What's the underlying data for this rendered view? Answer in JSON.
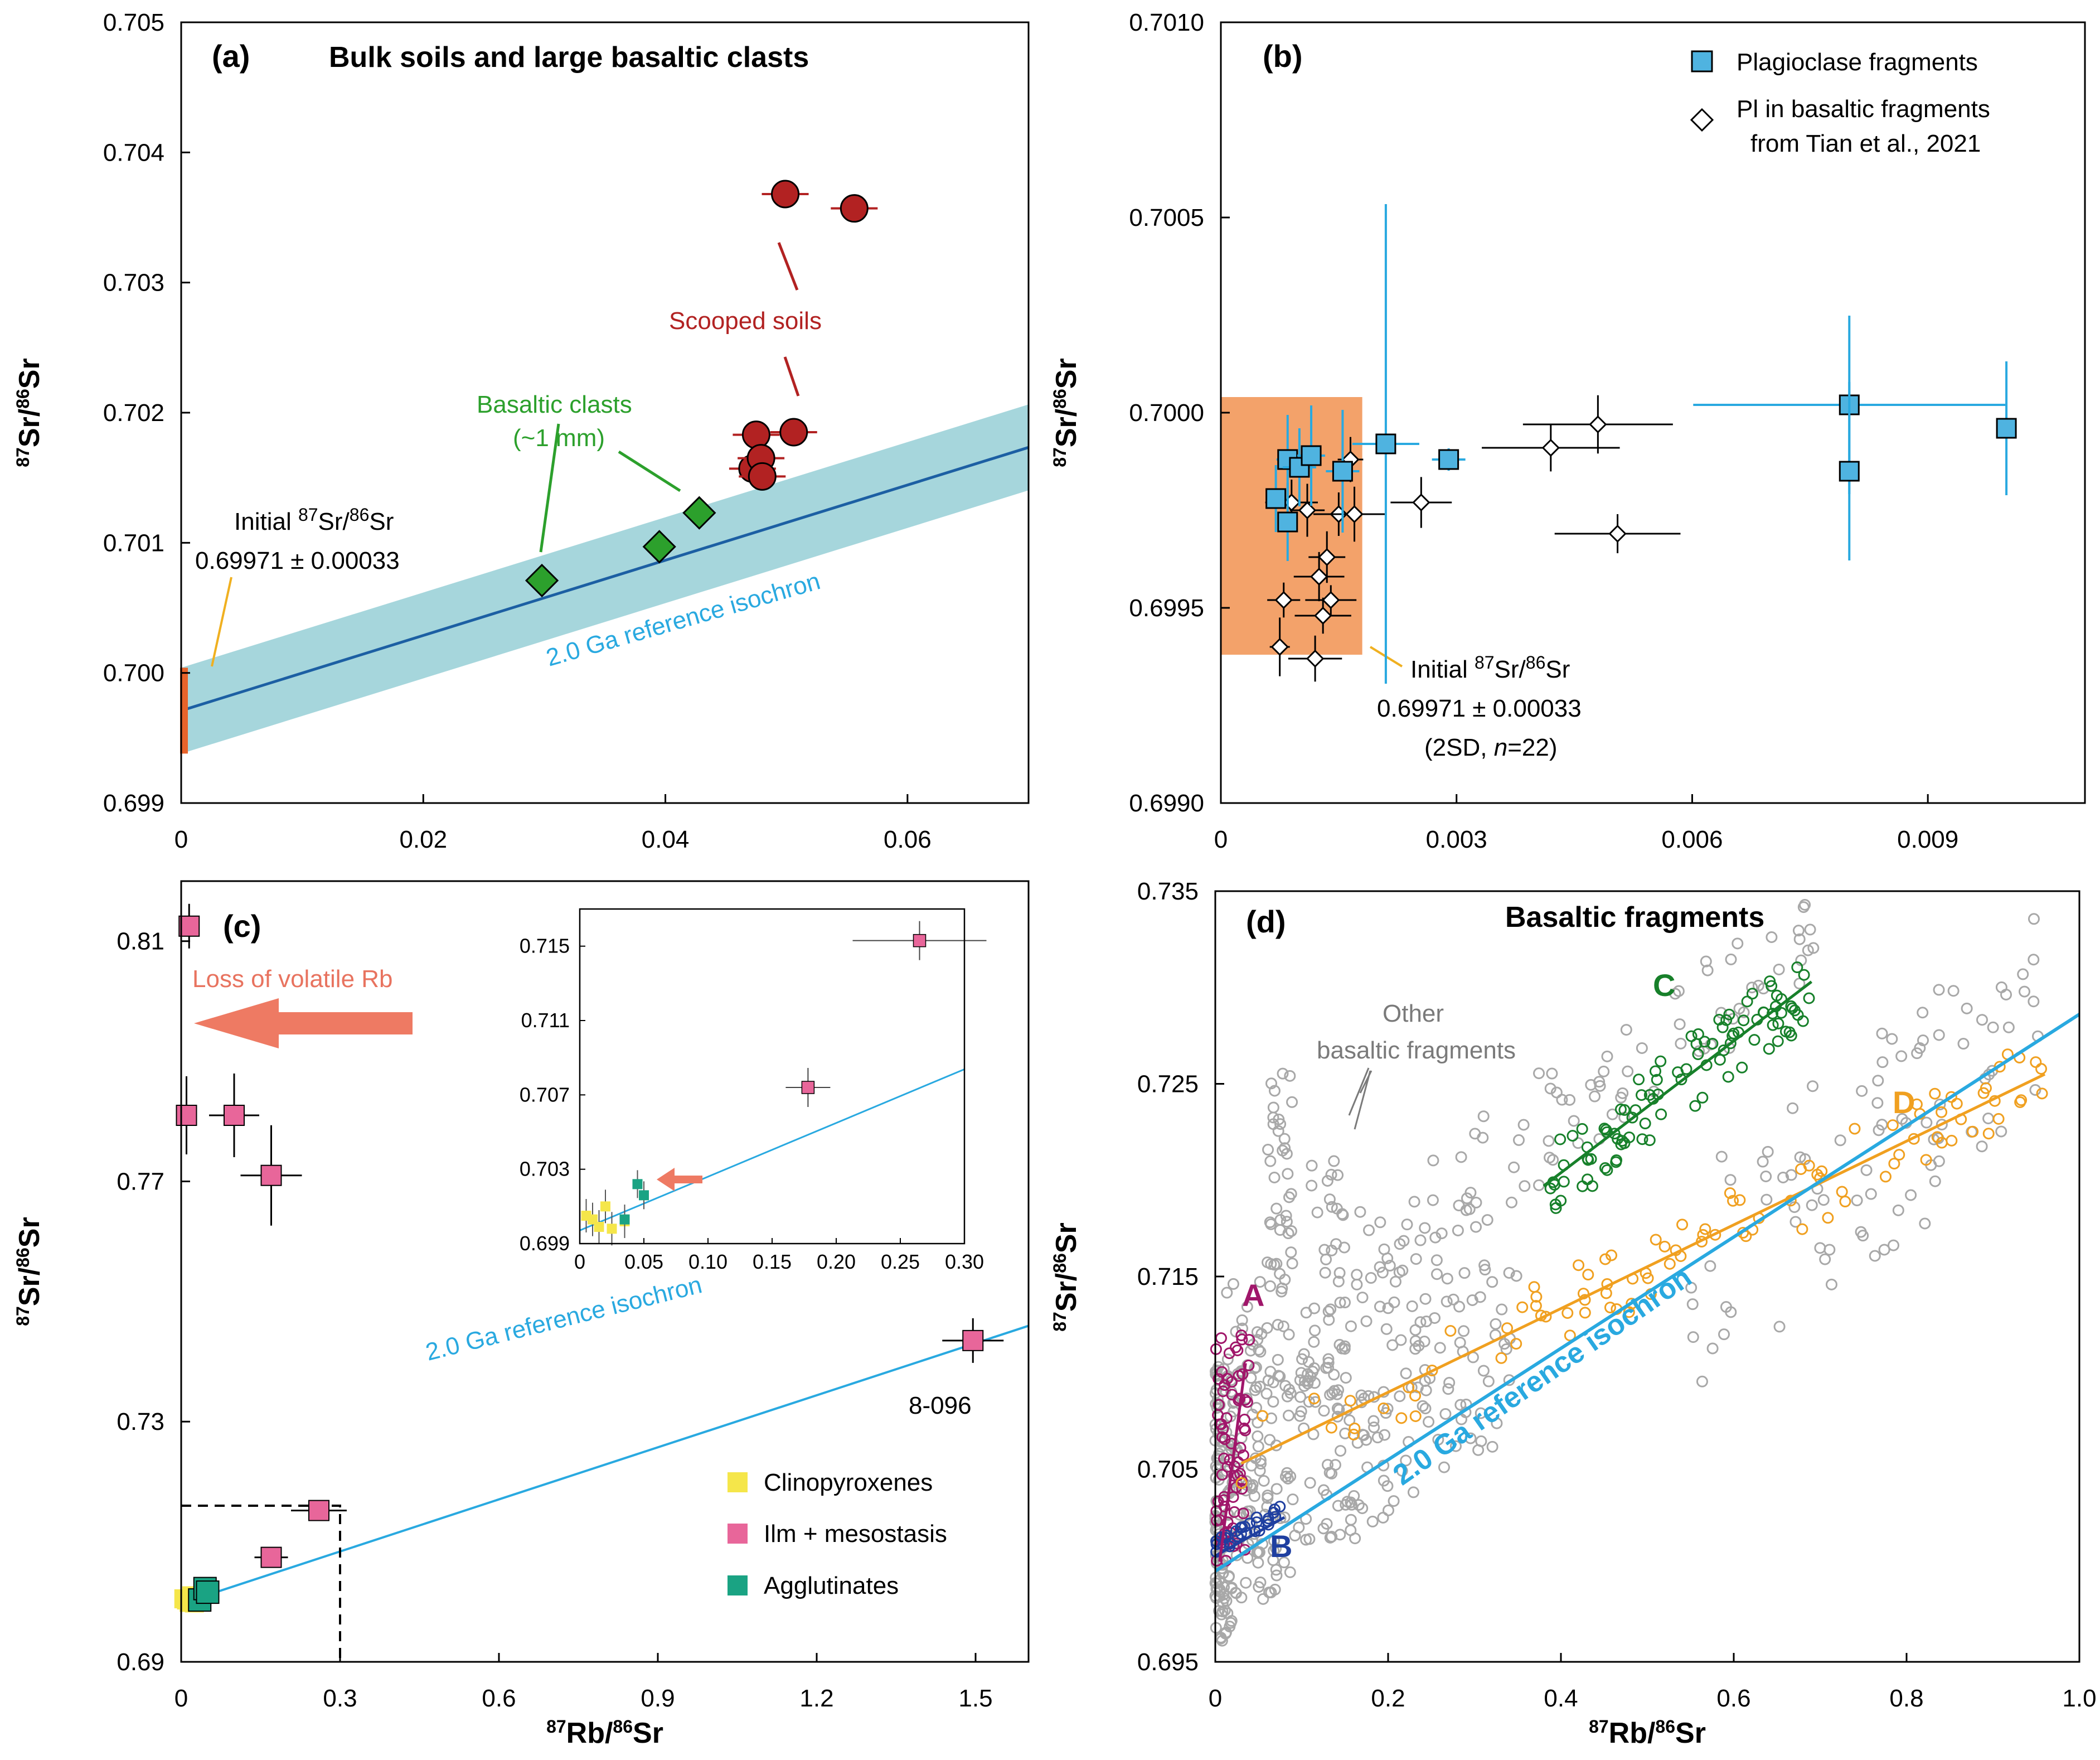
{
  "chart_data": [
    {
      "panel": "(a)",
      "type": "scatter",
      "title": "Bulk soils and large basaltic clasts",
      "xlim": [
        0,
        0.07
      ],
      "ylim": [
        0.699,
        0.705
      ],
      "xticks": [
        "0",
        "0.02",
        "0.04",
        "0.06"
      ],
      "yticks": [
        "0.699",
        "0.700",
        "0.701",
        "0.702",
        "0.703",
        "0.704",
        "0.705"
      ],
      "ylabel_main": "Sr/",
      "ylabel_end": "Sr",
      "ylabel_sup1": "87",
      "ylabel_sup2": "86",
      "series": [
        {
          "name": "Scooped soils",
          "color": "#b22222",
          "points": [
            [
              0.0499,
              0.70368
            ],
            [
              0.0556,
              0.70357
            ],
            [
              0.0475,
              0.70183
            ],
            [
              0.0506,
              0.70185
            ],
            [
              0.0472,
              0.70157
            ],
            [
              0.0479,
              0.70165
            ],
            [
              0.048,
              0.70151
            ]
          ]
        },
        {
          "name": "Basaltic clasts (~1 mm)",
          "color": "#2ca02c",
          "points": [
            [
              0.0298,
              0.70071
            ],
            [
              0.0395,
              0.70097
            ],
            [
              0.0428,
              0.70123
            ]
          ]
        }
      ],
      "isochron": {
        "label": "2.0 Ga reference isochron",
        "intercept": 0.69971,
        "slope": 0.0289,
        "band": 0.00033
      },
      "annotations": {
        "scooped": "Scooped soils",
        "clasts_1": "Basaltic clasts",
        "clasts_2": "(~1 mm)",
        "initial_1_pre": "Initial ",
        "initial_1_sup1": "87",
        "initial_1_mid": "Sr/",
        "initial_1_sup2": "86",
        "initial_1_post": "Sr",
        "initial_2": "0.69971 ± 0.00033"
      }
    },
    {
      "panel": "(b)",
      "type": "scatter",
      "xlim": [
        0,
        0.011
      ],
      "ylim": [
        0.699,
        0.701
      ],
      "xticks": [
        "0",
        "0.003",
        "0.006",
        "0.009"
      ],
      "yticks": [
        "0.6990",
        "0.6995",
        "0.7000",
        "0.7005",
        "0.7010"
      ],
      "ylabel_main": "Sr/",
      "ylabel_end": "Sr",
      "ylabel_sup1": "87",
      "ylabel_sup2": "86",
      "legend": [
        "Plagioclase fragments",
        "Pl in basaltic fragments",
        "from Tian et al., 2021"
      ],
      "series": [
        {
          "name": "Plagioclase fragments",
          "color": "#4fb3e0",
          "points": [
            [
              0.0007,
              0.69978
            ],
            [
              0.00085,
              0.69988
            ],
            [
              0.00085,
              0.69972
            ],
            [
              0.001,
              0.69986
            ],
            [
              0.00115,
              0.69989
            ],
            [
              0.00155,
              0.69985
            ],
            [
              0.0021,
              0.69992
            ],
            [
              0.0029,
              0.69988
            ],
            [
              0.008,
              0.70002
            ],
            [
              0.008,
              0.69985
            ],
            [
              0.01,
              0.69996
            ]
          ]
        },
        {
          "name": "Pl in basaltic fragments from Tian et al., 2021",
          "color": "#000000",
          "points": [
            [
              0.00075,
              0.6994
            ],
            [
              0.0008,
              0.69952
            ],
            [
              0.0009,
              0.69977
            ],
            [
              0.0011,
              0.69975
            ],
            [
              0.0012,
              0.69937
            ],
            [
              0.00125,
              0.69958
            ],
            [
              0.0013,
              0.69948
            ],
            [
              0.00135,
              0.69963
            ],
            [
              0.0014,
              0.69952
            ],
            [
              0.0015,
              0.69974
            ],
            [
              0.0017,
              0.69974
            ],
            [
              0.00165,
              0.69988
            ],
            [
              0.00255,
              0.69977
            ],
            [
              0.0042,
              0.69991
            ],
            [
              0.0048,
              0.69997
            ],
            [
              0.00505,
              0.69969
            ]
          ]
        }
      ],
      "initial_box": {
        "x_max": 0.0018,
        "y_min": 0.69938,
        "y_max": 0.70004
      },
      "annotations": {
        "initial_1_pre": "Initial ",
        "initial_1_sup1": "87",
        "initial_1_mid": "Sr/",
        "initial_1_sup2": "86",
        "initial_1_post": "Sr",
        "initial_2": "0.69971 ± 0.00033",
        "initial_3_pre": "(2SD, ",
        "initial_3_n": "n",
        "initial_3_post": "=22)"
      }
    },
    {
      "panel": "(c)",
      "type": "scatter",
      "xlim": [
        0,
        1.6
      ],
      "ylim": [
        0.69,
        0.82
      ],
      "xticks": [
        "0",
        "0.3",
        "0.6",
        "0.9",
        "1.2",
        "1.5"
      ],
      "yticks": [
        "0.69",
        "0.73",
        "0.77",
        "0.81"
      ],
      "xlabel_main": "Rb/",
      "xlabel_end": "Sr",
      "xlabel_sup1": "87",
      "xlabel_sup2": "86",
      "ylabel_main": "Sr/",
      "ylabel_end": "Sr",
      "ylabel_sup1": "87",
      "ylabel_sup2": "86",
      "legend": [
        "Clinopyroxenes",
        "Ilm + mesostasis",
        "Agglutinates"
      ],
      "series": [
        {
          "name": "Clinopyroxenes",
          "color": "#f5e64a",
          "points": [
            [
              0.005,
              0.7005
            ],
            [
              0.01,
              0.7003
            ],
            [
              0.015,
              0.6999
            ],
            [
              0.02,
              0.701
            ],
            [
              0.025,
              0.6998
            ],
            [
              0.035,
              0.7002
            ]
          ]
        },
        {
          "name": "Ilm + mesostasis",
          "color": "#e8669a",
          "points": [
            [
              0.015,
              0.8125
            ],
            [
              0.01,
              0.781
            ],
            [
              0.1,
              0.781
            ],
            [
              0.17,
              0.771
            ],
            [
              0.17,
              0.7074
            ],
            [
              0.26,
              0.7152
            ],
            [
              1.495,
              0.7435
            ]
          ]
        },
        {
          "name": "Agglutinates",
          "color": "#1aa383",
          "points": [
            [
              0.035,
              0.7003
            ],
            [
              0.045,
              0.7022
            ],
            [
              0.05,
              0.7016
            ]
          ]
        }
      ],
      "isochron": {
        "label": "2.0 Ga reference isochron",
        "intercept": 0.69971,
        "slope": 0.0289
      },
      "inset": {
        "xlim": [
          0,
          0.3
        ],
        "ylim": [
          0.699,
          0.717
        ],
        "xticks": [
          "0",
          "0.05",
          "0.10",
          "0.15",
          "0.20",
          "0.25",
          "0.30"
        ],
        "yticks": [
          "0.699",
          "0.703",
          "0.707",
          "0.711",
          "0.715"
        ]
      },
      "annotations": {
        "loss": "Loss of volatile Rb",
        "sample": "8-096"
      }
    },
    {
      "panel": "(d)",
      "type": "scatter",
      "title": "Basaltic fragments",
      "xlim": [
        0,
        1.0
      ],
      "ylim": [
        0.695,
        0.735
      ],
      "xticks": [
        "0",
        "0.2",
        "0.4",
        "0.6",
        "0.8",
        "1.0"
      ],
      "yticks": [
        "0.695",
        "0.705",
        "0.715",
        "0.725",
        "0.735"
      ],
      "xlabel_main": "Rb/",
      "xlabel_end": "Sr",
      "xlabel_sup1": "87",
      "xlabel_sup2": "86",
      "ylabel_main": "Sr/",
      "ylabel_end": "Sr",
      "ylabel_sup1": "87",
      "ylabel_sup2": "86",
      "groups": [
        {
          "name": "A",
          "color": "#a0166a",
          "x_range": [
            0.0,
            0.04
          ],
          "y_range": [
            0.7,
            0.712
          ]
        },
        {
          "name": "B",
          "color": "#1f3fa0",
          "x_range": [
            0.0,
            0.08
          ],
          "y_range": [
            0.7005,
            0.7025
          ]
        },
        {
          "name": "C",
          "color": "#17802a",
          "x_range": [
            0.38,
            0.69
          ],
          "y_range": [
            0.718,
            0.73
          ]
        },
        {
          "name": "D",
          "color": "#f0a020",
          "x_range": [
            0.03,
            0.96
          ],
          "y_range": [
            0.704,
            0.729
          ]
        },
        {
          "name": "Other basaltic fragments",
          "color": "#a8a8a8",
          "x_range": [
            0.0,
            0.96
          ],
          "y_range": [
            0.6955,
            0.733
          ]
        }
      ],
      "fit_lines": [
        {
          "name": "C",
          "x": [
            0.38,
            0.69
          ],
          "y": [
            0.7197,
            0.7303
          ]
        },
        {
          "name": "D",
          "x": [
            0.03,
            0.96
          ],
          "y": [
            0.7053,
            0.7255
          ]
        },
        {
          "name": "2.0 Ga reference isochron",
          "x": [
            0.0,
            1.0
          ],
          "y": [
            0.69971,
            0.72861
          ]
        }
      ],
      "annotations": {
        "other_1": "Other",
        "other_2": "basaltic fragments",
        "isochron": "2.0 Ga reference isochron"
      }
    }
  ]
}
